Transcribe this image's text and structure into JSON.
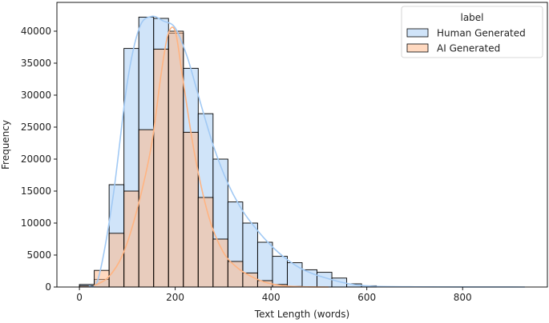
{
  "chart_data": {
    "type": "bar",
    "title": "",
    "xlabel": "Text Length (words)",
    "ylabel": "Frequency",
    "xlim": [
      -47,
      977
    ],
    "ylim": [
      0,
      44500
    ],
    "xticks": [
      0,
      200,
      400,
      600,
      800
    ],
    "yticks": [
      0,
      5000,
      10000,
      15000,
      20000,
      25000,
      30000,
      35000,
      40000
    ],
    "grid": false,
    "legend": {
      "title": "label",
      "placement": "top-right",
      "entries": [
        "Human Generated",
        "AI Generated"
      ]
    },
    "bin_width": 31,
    "bin_starts": [
      0,
      31,
      62,
      93,
      124,
      155,
      186,
      217,
      248,
      279,
      310,
      341,
      372,
      403,
      434,
      465,
      496,
      527,
      558,
      589
    ],
    "series": [
      {
        "name": "Human Generated",
        "color": "#a1c9f4",
        "values": [
          400,
          1200,
          16000,
          37300,
          42200,
          42000,
          39700,
          34200,
          27100,
          20000,
          13300,
          10000,
          7000,
          4800,
          3800,
          2700,
          2300,
          1400,
          500,
          200
        ],
        "kde": [
          [
            20,
            100
          ],
          [
            40,
            1500
          ],
          [
            70,
            14000
          ],
          [
            100,
            32000
          ],
          [
            125,
            40500
          ],
          [
            150,
            42300
          ],
          [
            175,
            41600
          ],
          [
            200,
            40500
          ],
          [
            225,
            36000
          ],
          [
            250,
            29500
          ],
          [
            280,
            22000
          ],
          [
            310,
            16200
          ],
          [
            340,
            12000
          ],
          [
            370,
            9000
          ],
          [
            400,
            6500
          ],
          [
            430,
            4500
          ],
          [
            460,
            3000
          ],
          [
            490,
            2000
          ],
          [
            520,
            1300
          ],
          [
            550,
            700
          ],
          [
            580,
            300
          ],
          [
            620,
            100
          ],
          [
            700,
            30
          ],
          [
            800,
            10
          ],
          [
            930,
            0
          ]
        ]
      },
      {
        "name": "AI Generated",
        "color": "#ffb482",
        "values": [
          200,
          2600,
          8400,
          15000,
          24600,
          37200,
          40000,
          24200,
          14000,
          7500,
          4000,
          2200,
          1000,
          400,
          100,
          0,
          0,
          0,
          0,
          0
        ],
        "kde": [
          [
            30,
            200
          ],
          [
            60,
            1500
          ],
          [
            90,
            5000
          ],
          [
            120,
            12000
          ],
          [
            150,
            22000
          ],
          [
            170,
            33000
          ],
          [
            185,
            39500
          ],
          [
            200,
            40000
          ],
          [
            215,
            33000
          ],
          [
            240,
            21000
          ],
          [
            270,
            11000
          ],
          [
            300,
            5500
          ],
          [
            330,
            3000
          ],
          [
            360,
            1600
          ],
          [
            390,
            700
          ],
          [
            420,
            250
          ],
          [
            450,
            80
          ],
          [
            480,
            20
          ],
          [
            520,
            0
          ]
        ]
      }
    ]
  }
}
